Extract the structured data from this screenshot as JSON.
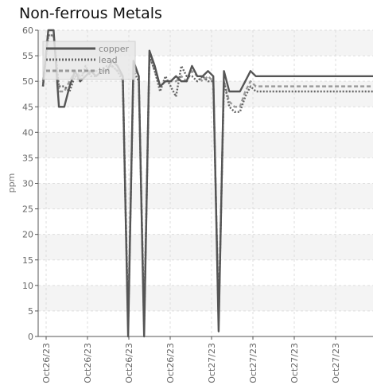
{
  "chart_data": {
    "type": "line",
    "title": "Non-ferrous Metals",
    "xlabel": "",
    "ylabel": "ppm",
    "ylim": [
      0,
      60
    ],
    "yticks": [
      0,
      5,
      10,
      15,
      20,
      25,
      30,
      35,
      40,
      45,
      50,
      55,
      60
    ],
    "xtick_labels": [
      "Oct26/23",
      "Oct26/23",
      "Oct26/23",
      "Oct26/23",
      "Oct27/23",
      "Oct27/23",
      "Oct27/23",
      "Oct27/23"
    ],
    "grid": true,
    "legend_position": "top-left",
    "x": [
      0,
      1,
      2,
      3,
      4,
      5,
      6,
      7,
      8,
      9,
      10,
      11,
      12,
      13,
      14,
      15,
      16,
      17,
      18,
      19,
      20,
      21,
      22,
      23,
      24,
      25,
      26,
      27,
      28,
      29,
      30,
      31,
      32,
      33,
      34,
      35,
      36,
      37,
      38,
      39,
      40,
      41,
      42,
      43,
      44,
      45,
      46,
      47,
      48,
      49,
      50,
      51,
      52,
      53,
      54,
      55,
      56,
      57,
      58,
      59,
      60,
      61,
      62
    ],
    "series": [
      {
        "name": "copper",
        "color": "#555555",
        "style": "solid",
        "values": [
          49,
          60,
          60,
          45,
          45,
          49,
          52,
          50,
          51,
          52,
          51,
          52,
          52,
          54,
          53,
          51,
          0,
          54,
          51,
          0,
          56,
          53,
          49,
          50,
          50,
          51,
          50,
          50,
          53,
          51,
          51,
          52,
          51,
          1,
          52,
          48,
          48,
          48,
          50,
          52,
          51,
          51,
          51,
          51,
          51,
          51,
          51,
          51,
          51,
          51,
          51,
          51,
          51,
          51,
          51,
          51,
          51,
          51,
          51,
          51,
          51,
          51,
          51
        ]
      },
      {
        "name": "lead",
        "color": "#666666",
        "style": "dotted",
        "values": [
          49,
          59,
          59,
          49,
          49,
          48,
          51,
          50,
          53,
          51,
          51,
          52,
          53,
          53,
          52,
          50,
          2,
          52,
          50,
          2,
          55,
          52,
          48,
          51,
          49,
          47,
          53,
          51,
          51,
          50,
          51,
          50,
          50,
          3,
          50,
          45,
          44,
          44,
          47,
          49,
          48,
          48,
          48,
          48,
          48,
          48,
          48,
          48,
          48,
          48,
          48,
          48,
          48,
          48,
          48,
          48,
          48,
          48,
          48,
          48,
          48,
          48,
          48
        ]
      },
      {
        "name": "tin",
        "color": "#999999",
        "style": "dashed",
        "values": [
          50,
          59,
          59,
          48,
          48,
          50,
          52,
          51,
          52,
          52,
          52,
          52,
          52,
          53,
          52,
          51,
          3,
          53,
          51,
          3,
          55,
          52,
          49,
          50,
          50,
          50,
          51,
          50,
          52,
          51,
          50,
          51,
          50,
          4,
          50,
          46,
          45,
          45,
          48,
          50,
          49,
          49,
          49,
          49,
          49,
          49,
          49,
          49,
          49,
          49,
          49,
          49,
          49,
          49,
          49,
          49,
          49,
          49,
          49,
          49,
          49,
          49,
          49
        ]
      }
    ]
  }
}
